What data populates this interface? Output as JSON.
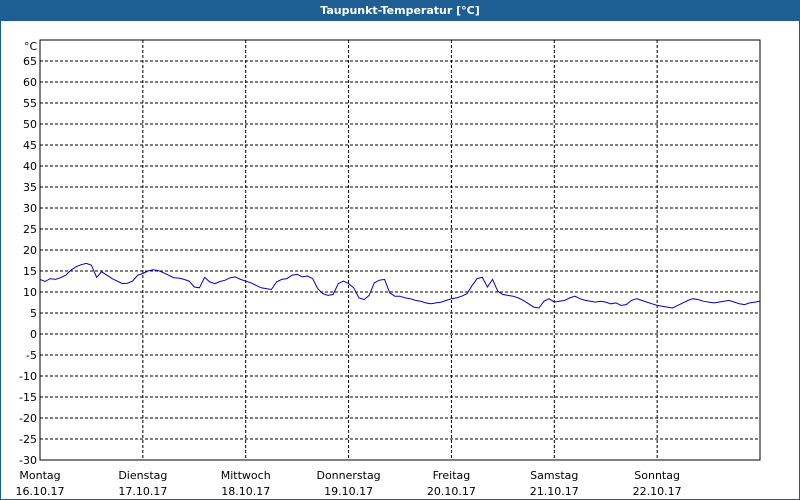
{
  "window": {
    "title": "Taupunkt-Temperatur [°C]"
  },
  "chart_data": {
    "type": "line",
    "title": "Taupunkt-Temperatur [°C]",
    "ylabel": "°C",
    "ylim": [
      -30,
      70
    ],
    "xlim": [
      0,
      7
    ],
    "grid": true,
    "line_color": "#0000cc",
    "y_ticks": [
      65,
      60,
      55,
      50,
      45,
      40,
      35,
      30,
      25,
      20,
      15,
      10,
      5,
      0,
      -5,
      -10,
      -15,
      -20,
      -25,
      -30
    ],
    "x_ticks": [
      {
        "day": "Montag",
        "date": "16.10.17"
      },
      {
        "day": "Dienstag",
        "date": "17.10.17"
      },
      {
        "day": "Mittwoch",
        "date": "18.10.17"
      },
      {
        "day": "Donnerstag",
        "date": "19.10.17"
      },
      {
        "day": "Freitag",
        "date": "20.10.17"
      },
      {
        "day": "Samstag",
        "date": "21.10.17"
      },
      {
        "day": "Sonntag",
        "date": "22.10.17"
      }
    ],
    "series": [
      {
        "x": [
          0.0,
          0.05,
          0.1,
          0.15,
          0.2,
          0.25,
          0.3,
          0.35,
          0.4,
          0.45,
          0.5,
          0.55,
          0.6,
          0.65,
          0.7,
          0.75,
          0.8,
          0.85,
          0.9,
          0.95,
          1.0,
          1.05,
          1.1,
          1.15,
          1.2,
          1.25,
          1.3,
          1.35,
          1.4,
          1.45,
          1.5,
          1.55,
          1.6,
          1.65,
          1.7,
          1.75,
          1.8,
          1.85,
          1.9,
          1.95,
          2.0,
          2.05,
          2.1,
          2.15,
          2.2,
          2.25,
          2.3,
          2.35,
          2.4,
          2.45,
          2.5,
          2.55,
          2.6,
          2.65,
          2.7,
          2.75,
          2.8,
          2.85,
          2.9,
          2.95,
          3.0,
          3.05,
          3.1,
          3.15,
          3.2,
          3.25,
          3.3,
          3.35,
          3.4,
          3.45,
          3.5,
          3.55,
          3.6,
          3.65,
          3.7,
          3.75,
          3.8,
          3.85,
          3.9,
          3.95,
          4.0,
          4.05,
          4.1,
          4.15,
          4.2,
          4.25,
          4.3,
          4.35,
          4.4,
          4.45,
          4.5,
          4.55,
          4.6,
          4.65,
          4.7,
          4.75,
          4.8,
          4.85,
          4.9,
          4.95,
          5.0,
          5.05,
          5.1,
          5.15,
          5.2,
          5.25,
          5.3,
          5.35,
          5.4,
          5.45,
          5.5,
          5.55,
          5.6,
          5.65,
          5.7,
          5.75,
          5.8,
          5.85,
          5.9,
          5.95,
          6.0,
          6.05,
          6.1,
          6.15,
          6.2,
          6.25,
          6.3,
          6.35,
          6.4,
          6.45,
          6.5,
          6.55,
          6.6,
          6.65,
          6.7,
          6.75,
          6.8,
          6.85,
          6.9,
          6.95,
          7.0
        ],
        "y": [
          13.0,
          12.5,
          13.2,
          13.0,
          13.4,
          14.0,
          15.2,
          16.0,
          16.5,
          16.8,
          16.4,
          13.5,
          14.8,
          14.0,
          13.2,
          12.6,
          12.0,
          12.1,
          12.6,
          14.0,
          14.4,
          15.0,
          15.3,
          15.1,
          14.6,
          14.0,
          13.4,
          13.3,
          13.0,
          12.6,
          11.2,
          11.0,
          13.5,
          12.4,
          12.0,
          12.5,
          12.8,
          13.4,
          13.6,
          13.0,
          12.6,
          12.2,
          11.6,
          11.0,
          10.8,
          10.6,
          12.4,
          13.0,
          13.2,
          14.0,
          14.2,
          13.6,
          13.8,
          13.2,
          10.8,
          9.6,
          9.2,
          9.4,
          12.0,
          12.6,
          12.0,
          11.0,
          8.6,
          8.2,
          9.2,
          12.2,
          12.8,
          13.0,
          9.8,
          9.0,
          9.0,
          8.6,
          8.4,
          8.0,
          7.8,
          7.4,
          7.2,
          7.4,
          7.6,
          8.0,
          8.4,
          8.6,
          9.0,
          9.6,
          11.5,
          13.2,
          13.5,
          11.2,
          13.0,
          10.2,
          9.4,
          9.2,
          9.0,
          8.6,
          8.0,
          7.2,
          6.4,
          6.2,
          7.8,
          8.4,
          7.6,
          7.8,
          8.0,
          8.6,
          9.0,
          8.4,
          8.0,
          7.8,
          7.6,
          7.8,
          7.6,
          7.2,
          7.4,
          6.8,
          7.0,
          8.0,
          8.4,
          8.0,
          7.6,
          7.2,
          6.8,
          6.6,
          6.4,
          6.2,
          6.8,
          7.4,
          8.0,
          8.4,
          8.2,
          7.8,
          7.6,
          7.4,
          7.6,
          7.8,
          8.0,
          7.6,
          7.2,
          7.0,
          7.4,
          7.6,
          7.8
        ]
      }
    ]
  }
}
